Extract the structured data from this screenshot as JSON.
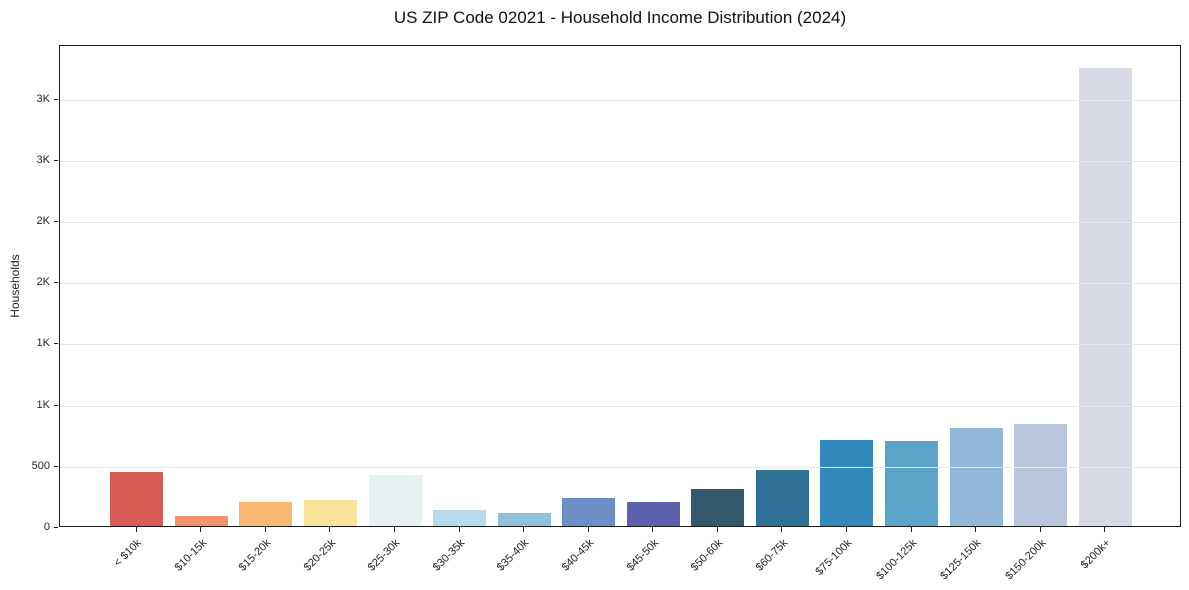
{
  "title": "US ZIP Code 02021 - Household Income Distribution (2024)",
  "chart_data": {
    "type": "bar",
    "title": "US ZIP Code 02021 - Household Income Distribution (2024)",
    "xlabel": "",
    "ylabel": "Households",
    "categories": [
      "< $10k",
      "$10-15k",
      "$15-20k",
      "$20-25k",
      "$25-30k",
      "$30-35k",
      "$35-40k",
      "$40-45k",
      "$45-50k",
      "$50-60k",
      "$60-75k",
      "$75-100k",
      "$100-125k",
      "$125-150k",
      "$150-200k",
      "$200k+"
    ],
    "values": [
      440,
      85,
      195,
      210,
      415,
      135,
      110,
      230,
      200,
      300,
      460,
      700,
      695,
      800,
      830,
      3740
    ],
    "bar_colors": [
      "#d65c55",
      "#f5936b",
      "#f9b871",
      "#fbe29c",
      "#e6f1f4",
      "#b6dbe9",
      "#90c1dc",
      "#6b8ec6",
      "#5d60ac",
      "#34596b",
      "#2f7095",
      "#3389bd",
      "#5ba3c9",
      "#93b8d7",
      "#b9c6dc",
      "#d8dae6"
    ],
    "ylim": [
      0,
      3940
    ],
    "yticks": [
      {
        "value": 0,
        "label": "0"
      },
      {
        "value": 500,
        "label": "500"
      },
      {
        "value": 1000,
        "label": "1K"
      },
      {
        "value": 1500,
        "label": "1K"
      },
      {
        "value": 2000,
        "label": "2K"
      },
      {
        "value": 2500,
        "label": "2K"
      },
      {
        "value": 3000,
        "label": "3K"
      },
      {
        "value": 3500,
        "label": "3K"
      }
    ],
    "grid": "horizontal",
    "gridline_color": "#e7e7e7",
    "legend_position": "none",
    "x_tick_rotation_deg": 45
  }
}
